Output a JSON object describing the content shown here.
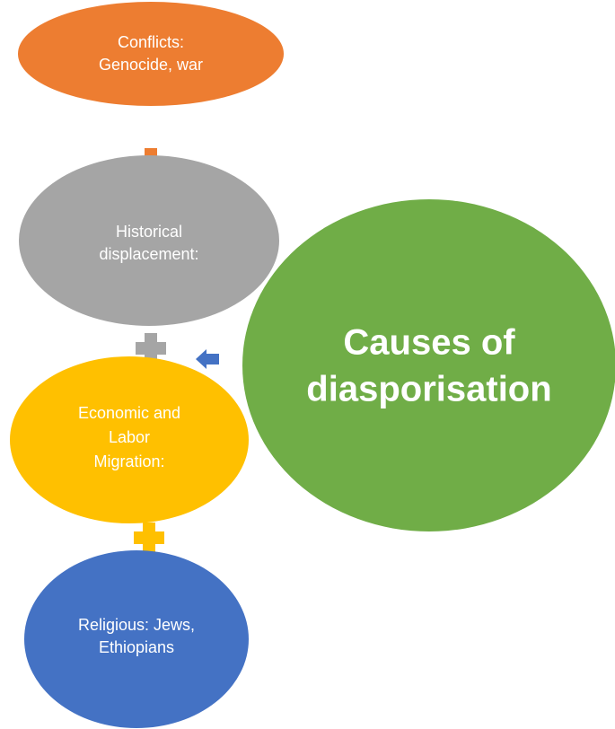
{
  "nodes": [
    {
      "lines": [
        "Conflicts:",
        "Genocide, war"
      ]
    },
    {
      "lines": [
        "Historical",
        "displacement:"
      ]
    },
    {
      "lines": [
        "Economic and",
        "Labor",
        "Migration:"
      ]
    },
    {
      "lines": [
        "Religious: Jews,",
        "Ethiopians"
      ]
    },
    {
      "lines": [
        "Causes of",
        "diasporisation"
      ]
    }
  ]
}
